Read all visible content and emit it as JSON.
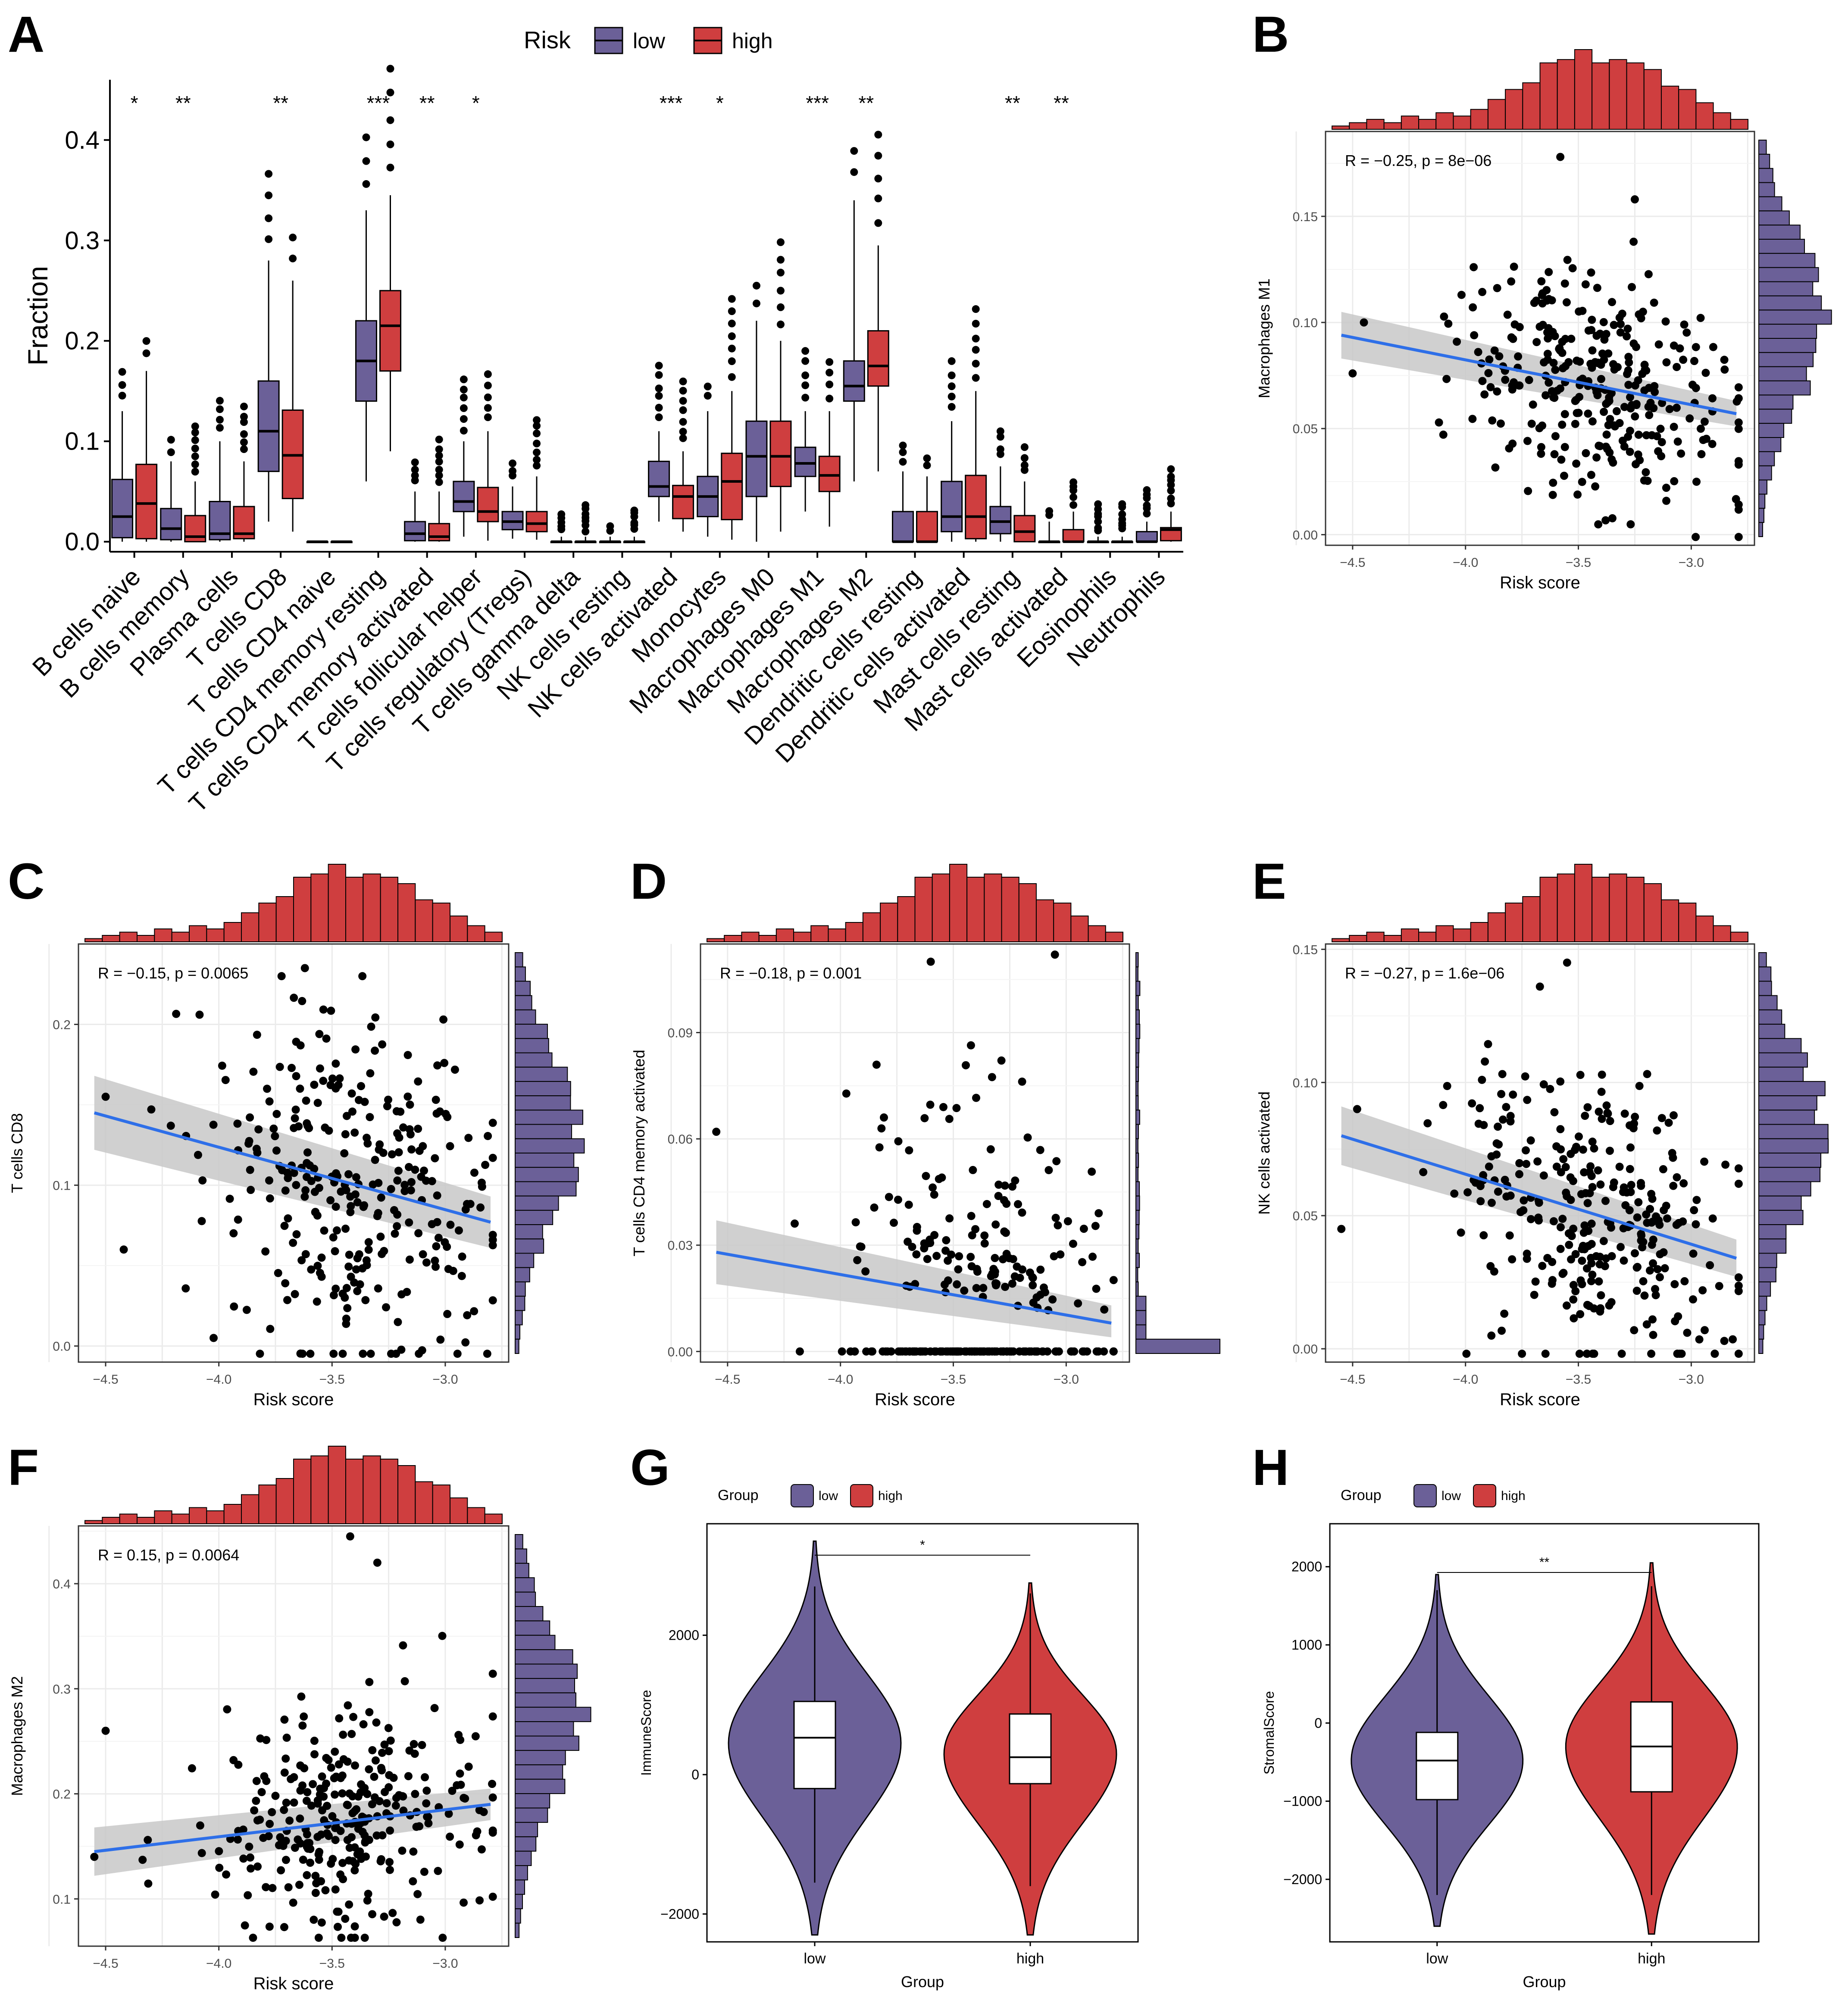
{
  "figure": {
    "colors": {
      "low": "#6B6098",
      "high": "#CF3E3F",
      "trend": "#2E6FE8",
      "band": "#C8C8C8",
      "point": "#000000",
      "grid": "#EBEBEB"
    }
  },
  "chart_data": [
    {
      "panel": "A",
      "type": "box",
      "ylabel": "Fraction",
      "ylim": [
        -0.01,
        0.46
      ],
      "yticks": [
        "0.0",
        "0.1",
        "0.2",
        "0.3",
        "0.4"
      ],
      "legend": {
        "title": "Risk",
        "items": [
          "low",
          "high"
        ]
      },
      "categories": [
        "B cells naive",
        "B cells memory",
        "Plasma cells",
        "T cells CD8",
        "T cells CD4 naive",
        "T cells CD4 memory resting",
        "T cells CD4 memory activated",
        "T cells follicular helper",
        "T cells regulatory (Tregs)",
        "T cells gamma delta",
        "NK cells resting",
        "NK cells activated",
        "Monocytes",
        "Macrophages M0",
        "Macrophages M1",
        "Macrophages M2",
        "Dendritic cells resting",
        "Dendritic cells activated",
        "Mast cells resting",
        "Mast cells activated",
        "Eosinophils",
        "Neutrophils"
      ],
      "significance": [
        "*",
        "**",
        "",
        "**",
        "",
        "***",
        "**",
        "*",
        "",
        "",
        "",
        "***",
        "*",
        "",
        "***",
        "**",
        "",
        "",
        "**",
        "**",
        "",
        ""
      ],
      "series": [
        {
          "name": "low",
          "stats": [
            [
              0,
              0.004,
              0.025,
              0.062,
              0.13
            ],
            [
              0,
              0.002,
              0.013,
              0.033,
              0.08
            ],
            [
              0,
              0.002,
              0.008,
              0.04,
              0.1
            ],
            [
              0.02,
              0.07,
              0.11,
              0.16,
              0.28
            ],
            [
              0,
              0,
              0,
              0,
              0
            ],
            [
              0.06,
              0.14,
              0.18,
              0.22,
              0.33
            ],
            [
              0,
              0.001,
              0.008,
              0.02,
              0.05
            ],
            [
              0.005,
              0.03,
              0.04,
              0.06,
              0.1
            ],
            [
              0.003,
              0.012,
              0.02,
              0.03,
              0.055
            ],
            [
              0,
              0,
              0,
              0,
              0.005
            ],
            [
              0,
              0,
              0,
              0,
              0.005
            ],
            [
              0.02,
              0.045,
              0.055,
              0.08,
              0.11
            ],
            [
              0.005,
              0.025,
              0.045,
              0.065,
              0.13
            ],
            [
              0,
              0.045,
              0.085,
              0.12,
              0.22
            ],
            [
              0.03,
              0.065,
              0.078,
              0.094,
              0.13
            ],
            [
              0.06,
              0.14,
              0.155,
              0.18,
              0.34
            ],
            [
              0,
              0,
              0,
              0.03,
              0.07
            ],
            [
              0,
              0.01,
              0.025,
              0.06,
              0.12
            ],
            [
              0,
              0.008,
              0.02,
              0.035,
              0.075
            ],
            [
              0,
              0,
              0,
              0,
              0.02
            ],
            [
              0,
              0,
              0,
              0,
              0.005
            ],
            [
              0,
              0,
              0,
              0.01,
              0.02
            ]
          ]
        },
        {
          "name": "high",
          "stats": [
            [
              0,
              0.003,
              0.038,
              0.077,
              0.17
            ],
            [
              0,
              0,
              0.005,
              0.026,
              0.06
            ],
            [
              0,
              0.003,
              0.008,
              0.035,
              0.08
            ],
            [
              0.01,
              0.043,
              0.086,
              0.131,
              0.26
            ],
            [
              0,
              0,
              0,
              0,
              0
            ],
            [
              0.09,
              0.17,
              0.215,
              0.25,
              0.345
            ],
            [
              0,
              0.001,
              0.005,
              0.018,
              0.05
            ],
            [
              0.001,
              0.02,
              0.03,
              0.054,
              0.11
            ],
            [
              0.002,
              0.01,
              0.018,
              0.03,
              0.065
            ],
            [
              0,
              0,
              0,
              0,
              0.005
            ],
            [
              0,
              0,
              0,
              0,
              0.005
            ],
            [
              0.01,
              0.023,
              0.045,
              0.056,
              0.09
            ],
            [
              0.002,
              0.022,
              0.06,
              0.088,
              0.15
            ],
            [
              0.01,
              0.055,
              0.085,
              0.12,
              0.2
            ],
            [
              0.015,
              0.05,
              0.066,
              0.085,
              0.13
            ],
            [
              0.07,
              0.155,
              0.175,
              0.21,
              0.295
            ],
            [
              0,
              0,
              0,
              0.03,
              0.065
            ],
            [
              0,
              0.003,
              0.025,
              0.066,
              0.15
            ],
            [
              0,
              0,
              0.01,
              0.026,
              0.06
            ],
            [
              0,
              0,
              0,
              0.012,
              0.03
            ],
            [
              0,
              0,
              0,
              0,
              0.005
            ],
            [
              0,
              0.001,
              0.012,
              0.014,
              0.03
            ]
          ]
        }
      ]
    },
    {
      "panel": "B",
      "type": "scatter",
      "xlabel": "Risk score",
      "ylabel": "Macrophages M1",
      "annotation": "R = −0.25, p = 8e−06",
      "xlim": [
        -4.62,
        -2.72
      ],
      "ylim": [
        -0.005,
        0.19
      ],
      "xticks": [
        "-4.5",
        "-4.0",
        "-3.5",
        "-3.0"
      ],
      "yticks": [
        "0.00",
        "0.05",
        "0.10",
        "0.15"
      ],
      "trend": {
        "x": [
          -4.55,
          -2.8
        ],
        "y": [
          0.094,
          0.057
        ],
        "band_low": [
          0.083,
          0.051
        ],
        "band_high": [
          0.105,
          0.063
        ]
      },
      "outliers": [
        [
          -3.58,
          0.178
        ],
        [
          -3.25,
          0.158
        ],
        [
          -4.5,
          0.076
        ],
        [
          -4.45,
          0.1
        ]
      ],
      "n": 300,
      "center": -3.42,
      "spread": 0.3,
      "ymean": 0.07,
      "ysd": 0.028
    },
    {
      "panel": "C",
      "type": "scatter",
      "xlabel": "Risk score",
      "ylabel": "T cells CD8",
      "annotation": "R = −0.15, p = 0.0065",
      "xlim": [
        -4.62,
        -2.72
      ],
      "ylim": [
        -0.01,
        0.25
      ],
      "xticks": [
        "-4.5",
        "-4.0",
        "-3.5",
        "-3.0"
      ],
      "yticks": [
        "0.0",
        "0.1",
        "0.2"
      ],
      "trend": {
        "x": [
          -4.55,
          -2.8
        ],
        "y": [
          0.145,
          0.077
        ],
        "band_low": [
          0.122,
          0.061
        ],
        "band_high": [
          0.168,
          0.093
        ]
      },
      "outliers": [
        [
          -3.62,
          0.235
        ],
        [
          -4.5,
          0.155
        ],
        [
          -4.42,
          0.06
        ]
      ],
      "n": 300,
      "center": -3.42,
      "spread": 0.3,
      "ymean": 0.1,
      "ysd": 0.055
    },
    {
      "panel": "D",
      "type": "scatter",
      "xlabel": "Risk score",
      "ylabel": "T cells CD4 memory activated",
      "annotation": "R = −0.18, p = 0.001",
      "xlim": [
        -4.62,
        -2.72
      ],
      "ylim": [
        -0.003,
        0.115
      ],
      "xticks": [
        "-4.5",
        "-4.0",
        "-3.5",
        "-3.0"
      ],
      "yticks": [
        "0.00",
        "0.03",
        "0.06",
        "0.09"
      ],
      "trend": {
        "x": [
          -4.55,
          -2.8
        ],
        "y": [
          0.028,
          0.008
        ],
        "band_low": [
          0.019,
          0.004
        ],
        "band_high": [
          0.037,
          0.013
        ]
      },
      "outliers": [
        [
          -3.05,
          0.112
        ],
        [
          -3.6,
          0.11
        ],
        [
          -4.55,
          0.062
        ]
      ],
      "n": 260,
      "center": -3.42,
      "spread": 0.3,
      "ymean": 0.02,
      "ysd": 0.025,
      "zero_fraction": 0.45
    },
    {
      "panel": "E",
      "type": "scatter",
      "xlabel": "Risk score",
      "ylabel": "NK cells activated",
      "annotation": "R = −0.27, p = 1.6e−06",
      "xlim": [
        -4.62,
        -2.72
      ],
      "ylim": [
        -0.005,
        0.152
      ],
      "xticks": [
        "-4.5",
        "-4.0",
        "-3.5",
        "-3.0"
      ],
      "yticks": [
        "0.00",
        "0.05",
        "0.10",
        "0.15"
      ],
      "trend": {
        "x": [
          -4.55,
          -2.8
        ],
        "y": [
          0.08,
          0.034
        ],
        "band_low": [
          0.069,
          0.027
        ],
        "band_high": [
          0.091,
          0.041
        ]
      },
      "outliers": [
        [
          -3.55,
          0.145
        ],
        [
          -4.55,
          0.045
        ],
        [
          -4.48,
          0.09
        ]
      ],
      "n": 300,
      "center": -3.42,
      "spread": 0.3,
      "ymean": 0.05,
      "ysd": 0.028
    },
    {
      "panel": "F",
      "type": "scatter",
      "xlabel": "Risk score",
      "ylabel": "Macrophages M2",
      "annotation": "R = 0.15, p = 0.0064",
      "xlim": [
        -4.62,
        -2.72
      ],
      "ylim": [
        0.055,
        0.455
      ],
      "xticks": [
        "-4.5",
        "-4.0",
        "-3.5",
        "-3.0"
      ],
      "yticks": [
        "0.1",
        "0.2",
        "0.3",
        "0.4"
      ],
      "trend": {
        "x": [
          -4.55,
          -2.8
        ],
        "y": [
          0.145,
          0.19
        ],
        "band_low": [
          0.122,
          0.175
        ],
        "band_high": [
          0.168,
          0.205
        ]
      },
      "outliers": [
        [
          -3.42,
          0.445
        ],
        [
          -3.3,
          0.42
        ],
        [
          -4.55,
          0.14
        ],
        [
          -4.5,
          0.26
        ]
      ],
      "n": 300,
      "center": -3.42,
      "spread": 0.3,
      "ymean": 0.18,
      "ysd": 0.055
    },
    {
      "panel": "G",
      "type": "violin",
      "xlabel": "Group",
      "ylabel": "ImmuneScore",
      "categories": [
        "low",
        "high"
      ],
      "legend": {
        "title": "Group",
        "items": [
          "low",
          "high"
        ]
      },
      "significance": "*",
      "ylim": [
        -2400,
        3600
      ],
      "yticks": [
        "-2000",
        "0",
        "2000"
      ],
      "groups": [
        {
          "name": "low",
          "min": -2300,
          "max": 3350,
          "q1": -200,
          "median": 530,
          "q3": 1050,
          "wlo": -1550,
          "whi": 2700,
          "mode": 450,
          "width": 1.0
        },
        {
          "name": "high",
          "min": -2300,
          "max": 2750,
          "q1": -130,
          "median": 250,
          "q3": 870,
          "wlo": -1600,
          "whi": 2600,
          "mode": 300,
          "width": 1.0
        }
      ]
    },
    {
      "panel": "H",
      "type": "violin",
      "xlabel": "Group",
      "ylabel": "StromalScore",
      "categories": [
        "low",
        "high"
      ],
      "legend": {
        "title": "Group",
        "items": [
          "low",
          "high"
        ]
      },
      "significance": "**",
      "ylim": [
        -2800,
        2550
      ],
      "yticks": [
        "-2000",
        "-1000",
        "0",
        "1000",
        "2000"
      ],
      "groups": [
        {
          "name": "low",
          "min": -2600,
          "max": 1900,
          "q1": -980,
          "median": -480,
          "q3": -120,
          "wlo": -2200,
          "whi": 1700,
          "mode": -480,
          "width": 1.0
        },
        {
          "name": "high",
          "min": -2700,
          "max": 2050,
          "q1": -880,
          "median": -300,
          "q3": 270,
          "wlo": -2200,
          "whi": 1750,
          "mode": -300,
          "width": 1.0
        }
      ]
    }
  ]
}
